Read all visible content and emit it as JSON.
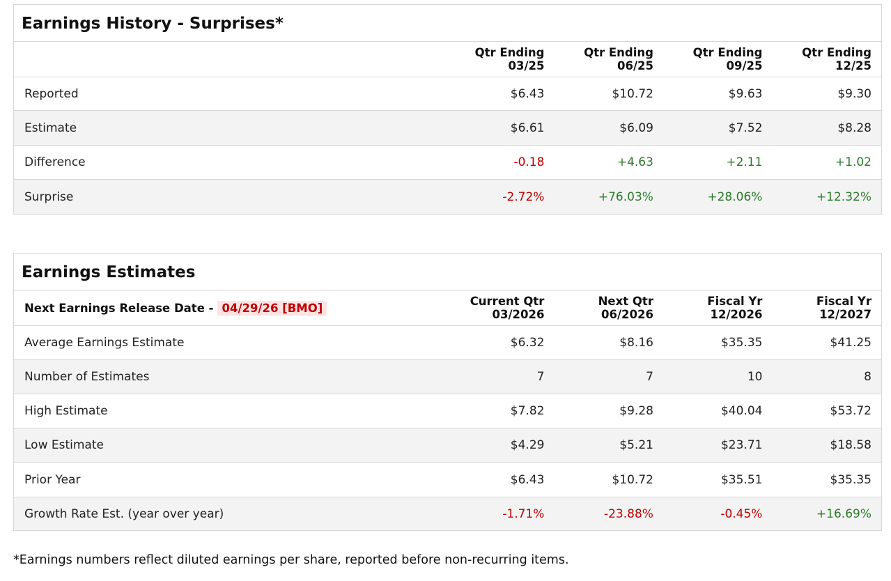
{
  "history": {
    "title": "Earnings History - Surprises*",
    "columns": [
      {
        "line1": "Qtr Ending",
        "line2": "03/25"
      },
      {
        "line1": "Qtr Ending",
        "line2": "06/25"
      },
      {
        "line1": "Qtr Ending",
        "line2": "09/25"
      },
      {
        "line1": "Qtr Ending",
        "line2": "12/25"
      }
    ],
    "rows": [
      {
        "label": "Reported",
        "values": [
          "$6.43",
          "$10.72",
          "$9.63",
          "$9.30"
        ],
        "tones": [
          "",
          "",
          "",
          ""
        ]
      },
      {
        "label": "Estimate",
        "values": [
          "$6.61",
          "$6.09",
          "$7.52",
          "$8.28"
        ],
        "tones": [
          "",
          "",
          "",
          ""
        ]
      },
      {
        "label": "Difference",
        "values": [
          "-0.18",
          "+4.63",
          "+2.11",
          "+1.02"
        ],
        "tones": [
          "neg",
          "pos",
          "pos",
          "pos"
        ]
      },
      {
        "label": "Surprise",
        "values": [
          "-2.72%",
          "+76.03%",
          "+28.06%",
          "+12.32%"
        ],
        "tones": [
          "neg",
          "pos",
          "pos",
          "pos"
        ]
      }
    ]
  },
  "estimates": {
    "title": "Earnings Estimates",
    "release_label": "Next Earnings Release Date -",
    "release_date": "04/29/26 [BMO]",
    "columns": [
      {
        "line1": "Current Qtr",
        "line2": "03/2026"
      },
      {
        "line1": "Next Qtr",
        "line2": "06/2026"
      },
      {
        "line1": "Fiscal Yr",
        "line2": "12/2026"
      },
      {
        "line1": "Fiscal Yr",
        "line2": "12/2027"
      }
    ],
    "rows": [
      {
        "label": "Average Earnings Estimate",
        "values": [
          "$6.32",
          "$8.16",
          "$35.35",
          "$41.25"
        ],
        "tones": [
          "",
          "",
          "",
          ""
        ]
      },
      {
        "label": "Number of Estimates",
        "values": [
          "7",
          "7",
          "10",
          "8"
        ],
        "tones": [
          "",
          "",
          "",
          ""
        ]
      },
      {
        "label": "High Estimate",
        "values": [
          "$7.82",
          "$9.28",
          "$40.04",
          "$53.72"
        ],
        "tones": [
          "",
          "",
          "",
          ""
        ]
      },
      {
        "label": "Low Estimate",
        "values": [
          "$4.29",
          "$5.21",
          "$23.71",
          "$18.58"
        ],
        "tones": [
          "",
          "",
          "",
          ""
        ]
      },
      {
        "label": "Prior Year",
        "values": [
          "$6.43",
          "$10.72",
          "$35.51",
          "$35.35"
        ],
        "tones": [
          "",
          "",
          "",
          ""
        ]
      },
      {
        "label": "Growth Rate Est. (year over year)",
        "values": [
          "-1.71%",
          "-23.88%",
          "-0.45%",
          "+16.69%"
        ],
        "tones": [
          "neg",
          "neg",
          "neg",
          "pos"
        ]
      }
    ]
  },
  "footnote": "*Earnings numbers reflect diluted earnings per share, reported before non-recurring items.",
  "colors": {
    "negative": "#c00000",
    "positive": "#2a7a2a",
    "highlight_bg": "#fde3e3",
    "stripe": "#f3f3f3"
  }
}
